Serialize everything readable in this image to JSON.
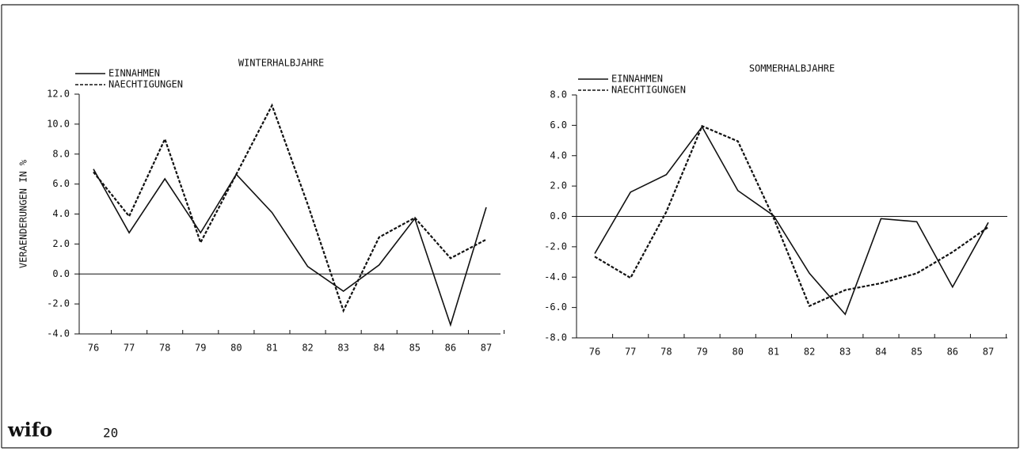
{
  "chart_data": [
    {
      "type": "line",
      "title": "WINTERHALBJAHRE",
      "y_label": "VERAENDERUNGEN IN %",
      "categories": [
        "76",
        "77",
        "78",
        "79",
        "80",
        "81",
        "82",
        "83",
        "84",
        "85",
        "86",
        "87"
      ],
      "series": [
        {
          "name": "EINNAHMEN",
          "color": "#111111",
          "style": "solid",
          "values": [
            7.0,
            2.75,
            6.35,
            2.75,
            6.65,
            4.1,
            0.5,
            -1.15,
            0.6,
            3.7,
            -3.4,
            4.45
          ]
        },
        {
          "name": "NAECHTIGUNGEN",
          "color": "#111111",
          "style": "dotted",
          "values": [
            6.8,
            3.85,
            9.0,
            2.1,
            6.65,
            11.25,
            4.65,
            -2.45,
            2.45,
            3.75,
            1.05,
            2.3
          ]
        }
      ],
      "ylim": [
        -4,
        12
      ],
      "yticks": [
        {
          "value": -4,
          "label": "-4.0"
        },
        {
          "value": -2,
          "label": "-2.0"
        },
        {
          "value": 0,
          "label": "0.0"
        },
        {
          "value": 2,
          "label": "2.0"
        },
        {
          "value": 4,
          "label": "4.0"
        },
        {
          "value": 6,
          "label": "6.0"
        },
        {
          "value": 8,
          "label": "8.0"
        },
        {
          "value": 10,
          "label": "10.0"
        },
        {
          "value": 12,
          "label": "12.0"
        }
      ],
      "grid": false
    },
    {
      "type": "line",
      "title": "SOMMERHALBJAHRE",
      "categories": [
        "76",
        "77",
        "78",
        "79",
        "80",
        "81",
        "82",
        "83",
        "84",
        "85",
        "86",
        "87"
      ],
      "series": [
        {
          "name": "EINNAHMEN",
          "color": "#111111",
          "style": "solid",
          "values": [
            -2.45,
            1.6,
            2.75,
            5.9,
            1.7,
            0.05,
            -3.75,
            -6.45,
            -0.15,
            -0.35,
            -4.65,
            -0.4
          ]
        },
        {
          "name": "NAECHTIGUNGEN",
          "color": "#111111",
          "style": "dotted",
          "values": [
            -2.65,
            -4.05,
            0.3,
            5.95,
            4.95,
            -0.1,
            -5.9,
            -4.85,
            -4.4,
            -3.75,
            -2.35,
            -0.7
          ]
        }
      ],
      "ylim": [
        -8,
        8
      ],
      "yticks": [
        {
          "value": -8,
          "label": "-8.0"
        },
        {
          "value": -6,
          "label": "-6.0"
        },
        {
          "value": -4,
          "label": "-4.0"
        },
        {
          "value": -2,
          "label": "-2.0"
        },
        {
          "value": 0,
          "label": "0.0"
        },
        {
          "value": 2,
          "label": "2.0"
        },
        {
          "value": 4,
          "label": "4.0"
        },
        {
          "value": 6,
          "label": "6.0"
        },
        {
          "value": 8,
          "label": "8.0"
        }
      ],
      "grid": false
    }
  ],
  "footer": {
    "logo": "wifo",
    "page_number": "20"
  }
}
